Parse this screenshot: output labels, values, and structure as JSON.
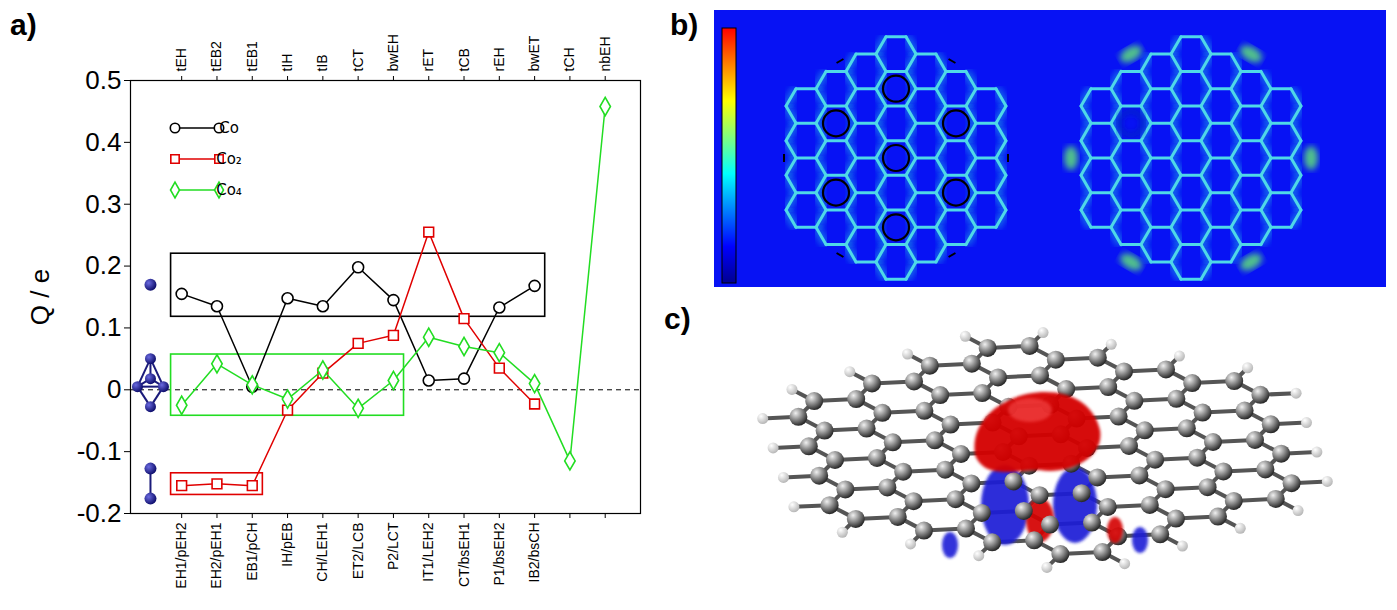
{
  "chart_data": {
    "type": "line",
    "panel_label": "a)",
    "y_label": "Q / e",
    "categories": [
      "EH1/pEH2",
      "EH2/pEH1",
      "EB1/pCH",
      "IH/pEB",
      "CH/LEH1",
      "ET2/LCB",
      "P2/LCT",
      "IT1/LEH2",
      "CT/bsEH1",
      "P1/bsEH2",
      "IB2/bsCH",
      null,
      null
    ],
    "top_categories": [
      "tEH",
      "tEB2",
      "tEB1",
      "tIH",
      "tIB",
      "tCT",
      "bwEH",
      "rET",
      "tCB",
      "rEH",
      "bwET",
      "tCH",
      "nbEH"
    ],
    "series": [
      {
        "name": "Co",
        "color": "#000000",
        "marker": "circle",
        "line_style": "solid",
        "values": [
          0.155,
          0.135,
          0.005,
          0.148,
          0.135,
          0.198,
          0.145,
          0.015,
          0.018,
          0.133,
          0.168,
          null,
          null
        ]
      },
      {
        "name": "Co₂",
        "color": "#e00000",
        "marker": "square",
        "line_style": "solid",
        "values": [
          -0.155,
          -0.152,
          -0.155,
          -0.033,
          0.027,
          0.075,
          0.088,
          0.255,
          0.115,
          0.035,
          -0.023,
          null,
          null
        ]
      },
      {
        "name": "Co₄",
        "color": "#22dd22",
        "marker": "diamond",
        "line_style": "solid",
        "values": [
          -0.025,
          0.042,
          0.008,
          -0.015,
          0.032,
          -0.03,
          0.015,
          0.085,
          0.07,
          0.06,
          0.01,
          -0.115,
          0.458
        ]
      }
    ],
    "ylim": [
      -0.2,
      0.5
    ],
    "yticks": [
      -0.2,
      -0.1,
      0,
      0.1,
      0.2,
      0.3,
      0.4,
      0.5
    ],
    "hlines": [
      {
        "y": 0,
        "line_style": "dashed",
        "color": "#000000"
      }
    ],
    "boxes": [
      {
        "series": "Co",
        "from": "EH1/pEH2",
        "to": "IB2/bsCH",
        "y": [
          0.118,
          0.22
        ]
      },
      {
        "series": "Co₄",
        "from": "EH1/pEH2",
        "to": "P2/LCT",
        "y": [
          -0.042,
          0.057
        ]
      },
      {
        "series": "Co₂",
        "from": "EH1/pEH2",
        "to": "EB1/pCH",
        "y": [
          -0.17,
          -0.135
        ]
      }
    ],
    "legend": "upper left",
    "grid": false
  },
  "panels": {
    "b": {
      "label": "b)"
    },
    "c": {
      "label": "c)"
    }
  }
}
